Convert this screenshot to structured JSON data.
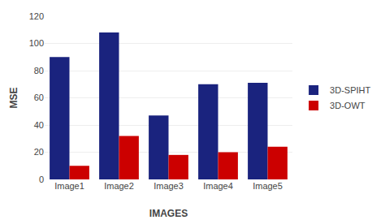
{
  "chart_data": {
    "type": "bar",
    "categories": [
      "Image1",
      "Image2",
      "Image3",
      "Image4",
      "Image5"
    ],
    "series": [
      {
        "name": "3D-SPIHT",
        "color": "#1a237e",
        "values": [
          90,
          108,
          47,
          70,
          71
        ]
      },
      {
        "name": "3D-OWT",
        "color": "#cc0000",
        "values": [
          10,
          32,
          18,
          20,
          24
        ]
      }
    ],
    "xlabel": "IMAGES",
    "ylabel": "MSE",
    "ylim": [
      0,
      120
    ],
    "yticks": [
      0,
      20,
      40,
      60,
      80,
      100,
      120
    ],
    "grid": true,
    "legend": "right"
  }
}
